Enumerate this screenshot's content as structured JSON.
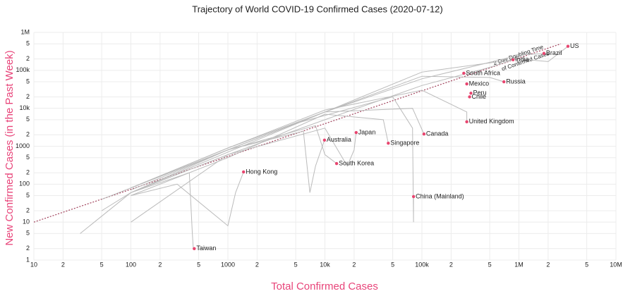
{
  "chart_data": {
    "type": "scatter",
    "title": "Trajectory of World COVID-19 Confirmed Cases (2020-07-12)",
    "xlabel": "Total Confirmed Cases",
    "ylabel": "New Confirmed Cases (in the Past Week)",
    "xscale": "log",
    "yscale": "log",
    "grid": true,
    "xlim": [
      10,
      10000000
    ],
    "ylim": [
      1,
      1000000
    ],
    "xticks": [
      10,
      {
        "value": 20,
        "label": "2"
      },
      {
        "value": 50,
        "label": "5"
      },
      100,
      {
        "value": 200,
        "label": "2"
      },
      {
        "value": 500,
        "label": "5"
      },
      1000,
      {
        "value": 2000,
        "label": "2"
      },
      {
        "value": 5000,
        "label": "5"
      },
      {
        "value": 10000,
        "label": "10k"
      },
      {
        "value": 20000,
        "label": "2"
      },
      {
        "value": 50000,
        "label": "5"
      },
      {
        "value": 100000,
        "label": "100k"
      },
      {
        "value": 200000,
        "label": "2"
      },
      {
        "value": 500000,
        "label": "5"
      },
      {
        "value": 1000000,
        "label": "1M"
      },
      {
        "value": 2000000,
        "label": "2"
      },
      {
        "value": 5000000,
        "label": "5"
      },
      {
        "value": 10000000,
        "label": "10M"
      }
    ],
    "yticks": [
      1,
      2,
      5,
      10,
      {
        "value": 20,
        "label": "2"
      },
      {
        "value": 50,
        "label": "5"
      },
      100,
      {
        "value": 200,
        "label": "2"
      },
      {
        "value": 500,
        "label": "5"
      },
      1000,
      {
        "value": 2000,
        "label": "2"
      },
      {
        "value": 5000,
        "label": "5"
      },
      {
        "value": 10000,
        "label": "10k"
      },
      {
        "value": 20000,
        "label": "2"
      },
      {
        "value": 50000,
        "label": "5"
      },
      {
        "value": 100000,
        "label": "100k"
      },
      {
        "value": 200000,
        "label": "2"
      },
      {
        "value": 500000,
        "label": "5"
      },
      {
        "value": 1000000,
        "label": "1M"
      }
    ],
    "reference_line": {
      "label": [
        "2 Day Doubling Time",
        "of Confirmed Cases"
      ],
      "x": [
        10,
        2700000
      ],
      "y": [
        10,
        500000
      ],
      "color": "#a0405a"
    },
    "points": {
      "color": "#e8456f",
      "names": [
        "US",
        "Brazil",
        "India",
        "South Africa",
        "Mexico",
        "Russia",
        "Peru",
        "Chile",
        "United Kingdom",
        "Canada",
        "Singapore",
        "Japan",
        "Australia",
        "South Korea",
        "China (Mainland)",
        "Hong Kong",
        "Taiwan"
      ],
      "x": [
        3200000,
        1810000,
        870000,
        270000,
        290000,
        700000,
        320000,
        310000,
        290000,
        105000,
        45000,
        21000,
        9900,
        13200,
        82000,
        1450,
        450
      ],
      "y": [
        430000,
        280000,
        190000,
        84000,
        44000,
        50000,
        25000,
        20000,
        4400,
        2100,
        1200,
        2300,
        1450,
        350,
        47,
        210,
        2
      ]
    },
    "trajectory_color": "#bbbbbb",
    "trajectories": [
      {
        "x": [
          100,
          1000,
          10000,
          100000,
          1000000,
          2000000,
          3200000
        ],
        "y": [
          60,
          700,
          8000,
          90000,
          200000,
          170000,
          430000
        ]
      },
      {
        "x": [
          100,
          1000,
          10000,
          100000,
          1000000,
          1810000
        ],
        "y": [
          80,
          800,
          8000,
          60000,
          250000,
          280000
        ]
      },
      {
        "x": [
          100,
          1000,
          10000,
          100000,
          500000,
          870000
        ],
        "y": [
          60,
          600,
          5000,
          40000,
          120000,
          190000
        ]
      },
      {
        "x": [
          100,
          1000,
          10000,
          100000,
          500000,
          700000
        ],
        "y": [
          70,
          800,
          8000,
          70000,
          65000,
          50000
        ]
      },
      {
        "x": [
          30,
          100,
          1000,
          8000,
          10000,
          13200
        ],
        "y": [
          5,
          60,
          800,
          3500,
          600,
          350
        ]
      },
      {
        "x": [
          50,
          500,
          5000,
          50000,
          80000,
          82000,
          82000
        ],
        "y": [
          40,
          400,
          4000,
          20000,
          3000,
          10,
          47
        ]
      },
      {
        "x": [
          50,
          100,
          400,
          430,
          440,
          450
        ],
        "y": [
          20,
          60,
          200,
          5,
          2,
          2
        ]
      },
      {
        "x": [
          100,
          300,
          1000,
          1200,
          1450
        ],
        "y": [
          50,
          100,
          8,
          60,
          210
        ]
      },
      {
        "x": [
          100,
          1000,
          6000,
          7000,
          8000,
          9900
        ],
        "y": [
          80,
          800,
          2500,
          60,
          300,
          1450
        ]
      },
      {
        "x": [
          100,
          1000,
          10000,
          17000,
          20000,
          21000
        ],
        "y": [
          10,
          600,
          3000,
          300,
          800,
          2300
        ]
      },
      {
        "x": [
          100,
          1000,
          10000,
          40000,
          45000
        ],
        "y": [
          50,
          500,
          7000,
          5000,
          1200
        ]
      },
      {
        "x": [
          100,
          1000,
          10000,
          80000,
          105000
        ],
        "y": [
          80,
          900,
          8000,
          10000,
          2100
        ]
      },
      {
        "x": [
          100,
          1000,
          10000,
          100000,
          290000,
          290000
        ],
        "y": [
          80,
          900,
          9000,
          30000,
          8000,
          4400
        ]
      }
    ]
  }
}
